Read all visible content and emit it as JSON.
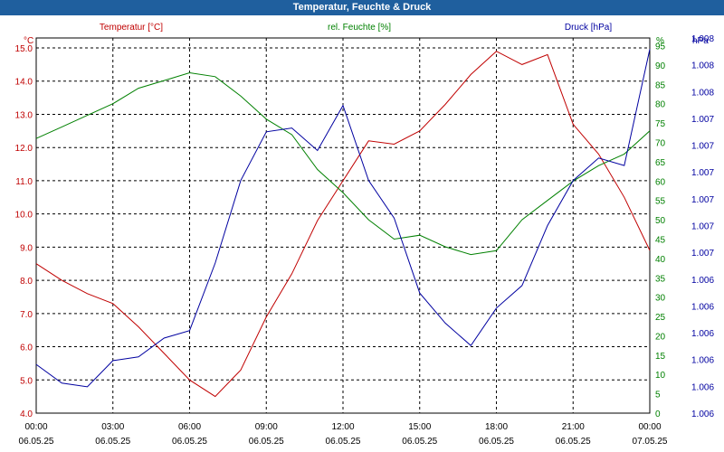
{
  "window": {
    "title": "Temperatur, Feuchte & Druck"
  },
  "chart_data": {
    "type": "line",
    "title": "Temperatur, Feuchte & Druck",
    "grid": true,
    "x_ticks": [
      {
        "time": "00:00",
        "date": "06.05.25"
      },
      {
        "time": "03:00",
        "date": "06.05.25"
      },
      {
        "time": "06:00",
        "date": "06.05.25"
      },
      {
        "time": "09:00",
        "date": "06.05.25"
      },
      {
        "time": "12:00",
        "date": "06.05.25"
      },
      {
        "time": "15:00",
        "date": "06.05.25"
      },
      {
        "time": "18:00",
        "date": "06.05.25"
      },
      {
        "time": "21:00",
        "date": "06.05.25"
      },
      {
        "time": "00:00",
        "date": "07.05.25"
      }
    ],
    "x_hours": [
      0,
      1,
      2,
      3,
      4,
      5,
      6,
      7,
      8,
      9,
      10,
      11,
      12,
      13,
      14,
      15,
      16,
      17,
      18,
      19,
      20,
      21,
      22,
      23,
      24
    ],
    "axes": {
      "temperature": {
        "unit": "°C",
        "ylim": [
          4.0,
          15.3
        ],
        "ticks": [
          "4.0",
          "5.0",
          "6.0",
          "7.0",
          "8.0",
          "9.0",
          "10.0",
          "11.0",
          "12.0",
          "13.0",
          "14.0",
          "15.0"
        ],
        "color": "#c00000"
      },
      "humidity": {
        "unit": "%",
        "ylim": [
          0,
          97
        ],
        "ticks": [
          "0",
          "5",
          "10",
          "15",
          "20",
          "25",
          "30",
          "35",
          "40",
          "45",
          "50",
          "55",
          "60",
          "65",
          "70",
          "75",
          "80",
          "85",
          "90",
          "95"
        ],
        "color": "#008000"
      },
      "pressure": {
        "unit": "hPa",
        "ticks": [
          "1.006",
          "1.006",
          "1.006",
          "1.006",
          "1.006",
          "1.006",
          "1.007",
          "1.007",
          "1.007",
          "1.007",
          "1.007",
          "1.007",
          "1.008",
          "1.008",
          "1.008"
        ],
        "color": "#0000a0"
      }
    },
    "series": [
      {
        "name": "Temperatur [°C]",
        "axis": "temperature",
        "color": "#c00000",
        "values": [
          8.5,
          8.0,
          7.6,
          7.3,
          6.6,
          5.8,
          5.0,
          4.5,
          5.3,
          6.9,
          8.2,
          9.8,
          11.0,
          12.2,
          12.1,
          12.5,
          13.3,
          14.2,
          14.9,
          14.5,
          14.8,
          12.7,
          11.8,
          10.5,
          8.9
        ]
      },
      {
        "name": "rel. Feuchte [%]",
        "axis": "humidity",
        "color": "#008000",
        "values": [
          71,
          74,
          77,
          80,
          84,
          86,
          88,
          87,
          82,
          76,
          72,
          63,
          57,
          50,
          45,
          46,
          43,
          41,
          42,
          50,
          55,
          60,
          64,
          67,
          73
        ]
      },
      {
        "name": "Druck [hPa]",
        "axis": "pressure",
        "color": "#0000a0",
        "values": [
          13,
          8,
          7,
          14,
          15,
          20,
          22,
          40,
          62,
          75,
          76,
          70,
          82,
          62,
          52,
          32,
          24,
          18,
          28,
          34,
          50,
          62,
          68,
          66,
          97
        ],
        "note": "relative pressure level in percent of the axis range"
      }
    ]
  }
}
